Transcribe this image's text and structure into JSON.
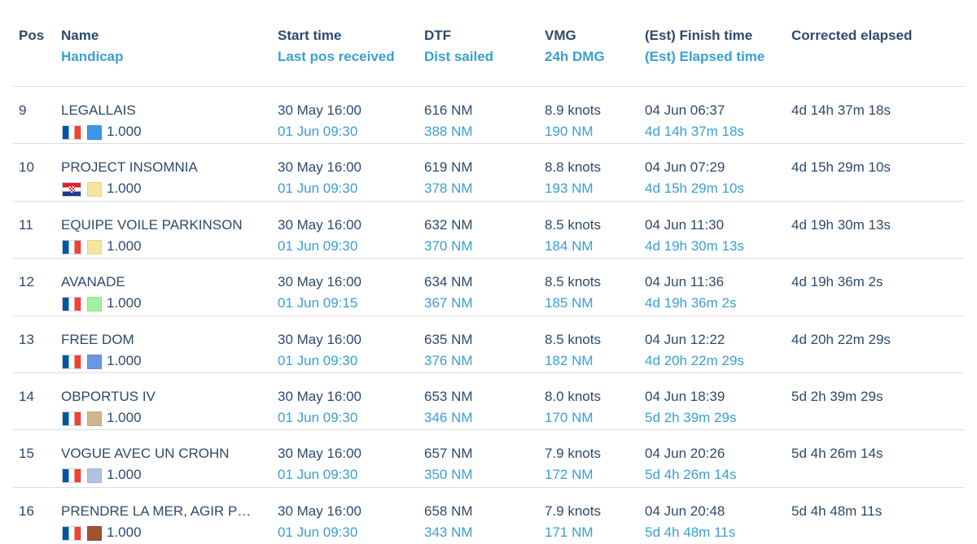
{
  "columns": {
    "pos": {
      "h1": "Pos",
      "h2": ""
    },
    "name": {
      "h1": "Name",
      "h2": "Handicap"
    },
    "start": {
      "h1": "Start time",
      "h2": "Last pos received"
    },
    "dtf": {
      "h1": "DTF",
      "h2": "Dist sailed"
    },
    "vmg": {
      "h1": "VMG",
      "h2": "24h DMG"
    },
    "finish": {
      "h1": "(Est) Finish time",
      "h2": "(Est) Elapsed time"
    },
    "corrected": {
      "h1": "Corrected elapsed",
      "h2": ""
    }
  },
  "rows": [
    {
      "pos": "9",
      "name": "LEGALLAIS",
      "flag": "fr",
      "color": "#3a97ea",
      "handicap": "1.000",
      "start": "30 May 16:00",
      "last_pos": "01 Jun 09:30",
      "dtf": "616 NM",
      "sailed": "388 NM",
      "vmg": "8.9 knots",
      "dmg": "190 NM",
      "finish": "04 Jun 06:37",
      "elapsed": "4d 14h 37m 18s",
      "corrected": "4d 14h 37m 18s"
    },
    {
      "pos": "10",
      "name": "PROJECT INSOMNIA",
      "flag": "hr",
      "color": "#f2e6a0",
      "handicap": "1.000",
      "start": "30 May 16:00",
      "last_pos": "01 Jun 09:30",
      "dtf": "619 NM",
      "sailed": "378 NM",
      "vmg": "8.8 knots",
      "dmg": "193 NM",
      "finish": "04 Jun 07:29",
      "elapsed": "4d 15h 29m 10s",
      "corrected": "4d 15h 29m 10s"
    },
    {
      "pos": "11",
      "name": "EQUIPE VOILE PARKINSON",
      "flag": "fr",
      "color": "#f2e6a0",
      "handicap": "1.000",
      "start": "30 May 16:00",
      "last_pos": "01 Jun 09:30",
      "dtf": "632 NM",
      "sailed": "370 NM",
      "vmg": "8.5 knots",
      "dmg": "184 NM",
      "finish": "04 Jun 11:30",
      "elapsed": "4d 19h 30m 13s",
      "corrected": "4d 19h 30m 13s"
    },
    {
      "pos": "12",
      "name": "AVANADE",
      "flag": "fr",
      "color": "#9ff29f",
      "handicap": "1.000",
      "start": "30 May 16:00",
      "last_pos": "01 Jun 09:15",
      "dtf": "634 NM",
      "sailed": "367 NM",
      "vmg": "8.5 knots",
      "dmg": "185 NM",
      "finish": "04 Jun 11:36",
      "elapsed": "4d 19h 36m 2s",
      "corrected": "4d 19h 36m 2s"
    },
    {
      "pos": "13",
      "name": "FREE DOM",
      "flag": "fr",
      "color": "#6b96e8",
      "handicap": "1.000",
      "start": "30 May 16:00",
      "last_pos": "01 Jun 09:30",
      "dtf": "635 NM",
      "sailed": "376 NM",
      "vmg": "8.5 knots",
      "dmg": "182 NM",
      "finish": "04 Jun 12:22",
      "elapsed": "4d 20h 22m 29s",
      "corrected": "4d 20h 22m 29s"
    },
    {
      "pos": "14",
      "name": "OBPORTUS IV",
      "flag": "fr",
      "color": "#d2b48c",
      "handicap": "1.000",
      "start": "30 May 16:00",
      "last_pos": "01 Jun 09:30",
      "dtf": "653 NM",
      "sailed": "346 NM",
      "vmg": "8.0 knots",
      "dmg": "170 NM",
      "finish": "04 Jun 18:39",
      "elapsed": "5d 2h 39m 29s",
      "corrected": "5d 2h 39m 29s"
    },
    {
      "pos": "15",
      "name": "VOGUE AVEC UN CROHN",
      "flag": "fr",
      "color": "#b0c4de",
      "handicap": "1.000",
      "start": "30 May 16:00",
      "last_pos": "01 Jun 09:30",
      "dtf": "657 NM",
      "sailed": "350 NM",
      "vmg": "7.9 knots",
      "dmg": "172 NM",
      "finish": "04 Jun 20:26",
      "elapsed": "5d 4h 26m 14s",
      "corrected": "5d 4h 26m 14s"
    },
    {
      "pos": "16",
      "name": "PRENDRE LA MER, AGIR P…",
      "flag": "fr",
      "color": "#a0522d",
      "handicap": "1.000",
      "start": "30 May 16:00",
      "last_pos": "01 Jun 09:30",
      "dtf": "658 NM",
      "sailed": "343 NM",
      "vmg": "7.9 knots",
      "dmg": "171 NM",
      "finish": "04 Jun 20:48",
      "elapsed": "5d 4h 48m 11s",
      "corrected": "5d 4h 48m 11s"
    }
  ]
}
